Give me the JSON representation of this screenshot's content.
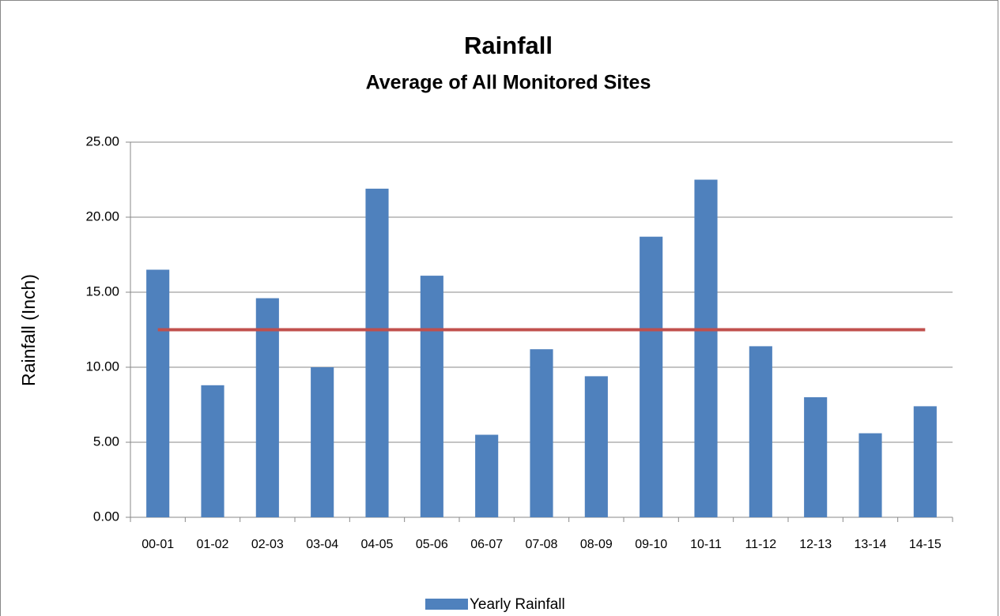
{
  "chart_data": {
    "type": "bar",
    "title": "Rainfall",
    "subtitle": "Average of All Monitored Sites",
    "y_label": "Rainfall (Inch)",
    "categories": [
      "00-01",
      "01-02",
      "02-03",
      "03-04",
      "04-05",
      "05-06",
      "06-07",
      "07-08",
      "08-09",
      "09-10",
      "10-11",
      "11-12",
      "12-13",
      "13-14",
      "14-15"
    ],
    "series": [
      {
        "name": "Yearly Rainfall",
        "type": "bar",
        "color": "#4f81bd",
        "values": [
          16.5,
          8.8,
          14.6,
          10.0,
          21.9,
          16.1,
          5.5,
          11.2,
          9.4,
          18.7,
          22.5,
          11.4,
          8.0,
          5.6,
          7.4
        ]
      },
      {
        "type": "line",
        "color": "#c0504d",
        "values": [
          12.5,
          12.5,
          12.5,
          12.5,
          12.5,
          12.5,
          12.5,
          12.5,
          12.5,
          12.5,
          12.5,
          12.5,
          12.5,
          12.5,
          12.5
        ]
      }
    ],
    "ylim": [
      0,
      25
    ],
    "yticks": [
      {
        "value": 0,
        "label": "0.00"
      },
      {
        "value": 5,
        "label": "5.00"
      },
      {
        "value": 10,
        "label": "10.00"
      },
      {
        "value": 15,
        "label": "15.00"
      },
      {
        "value": 20,
        "label": "20.00"
      },
      {
        "value": 25,
        "label": "25.00"
      }
    ],
    "grid": true,
    "legend": "bottom"
  }
}
